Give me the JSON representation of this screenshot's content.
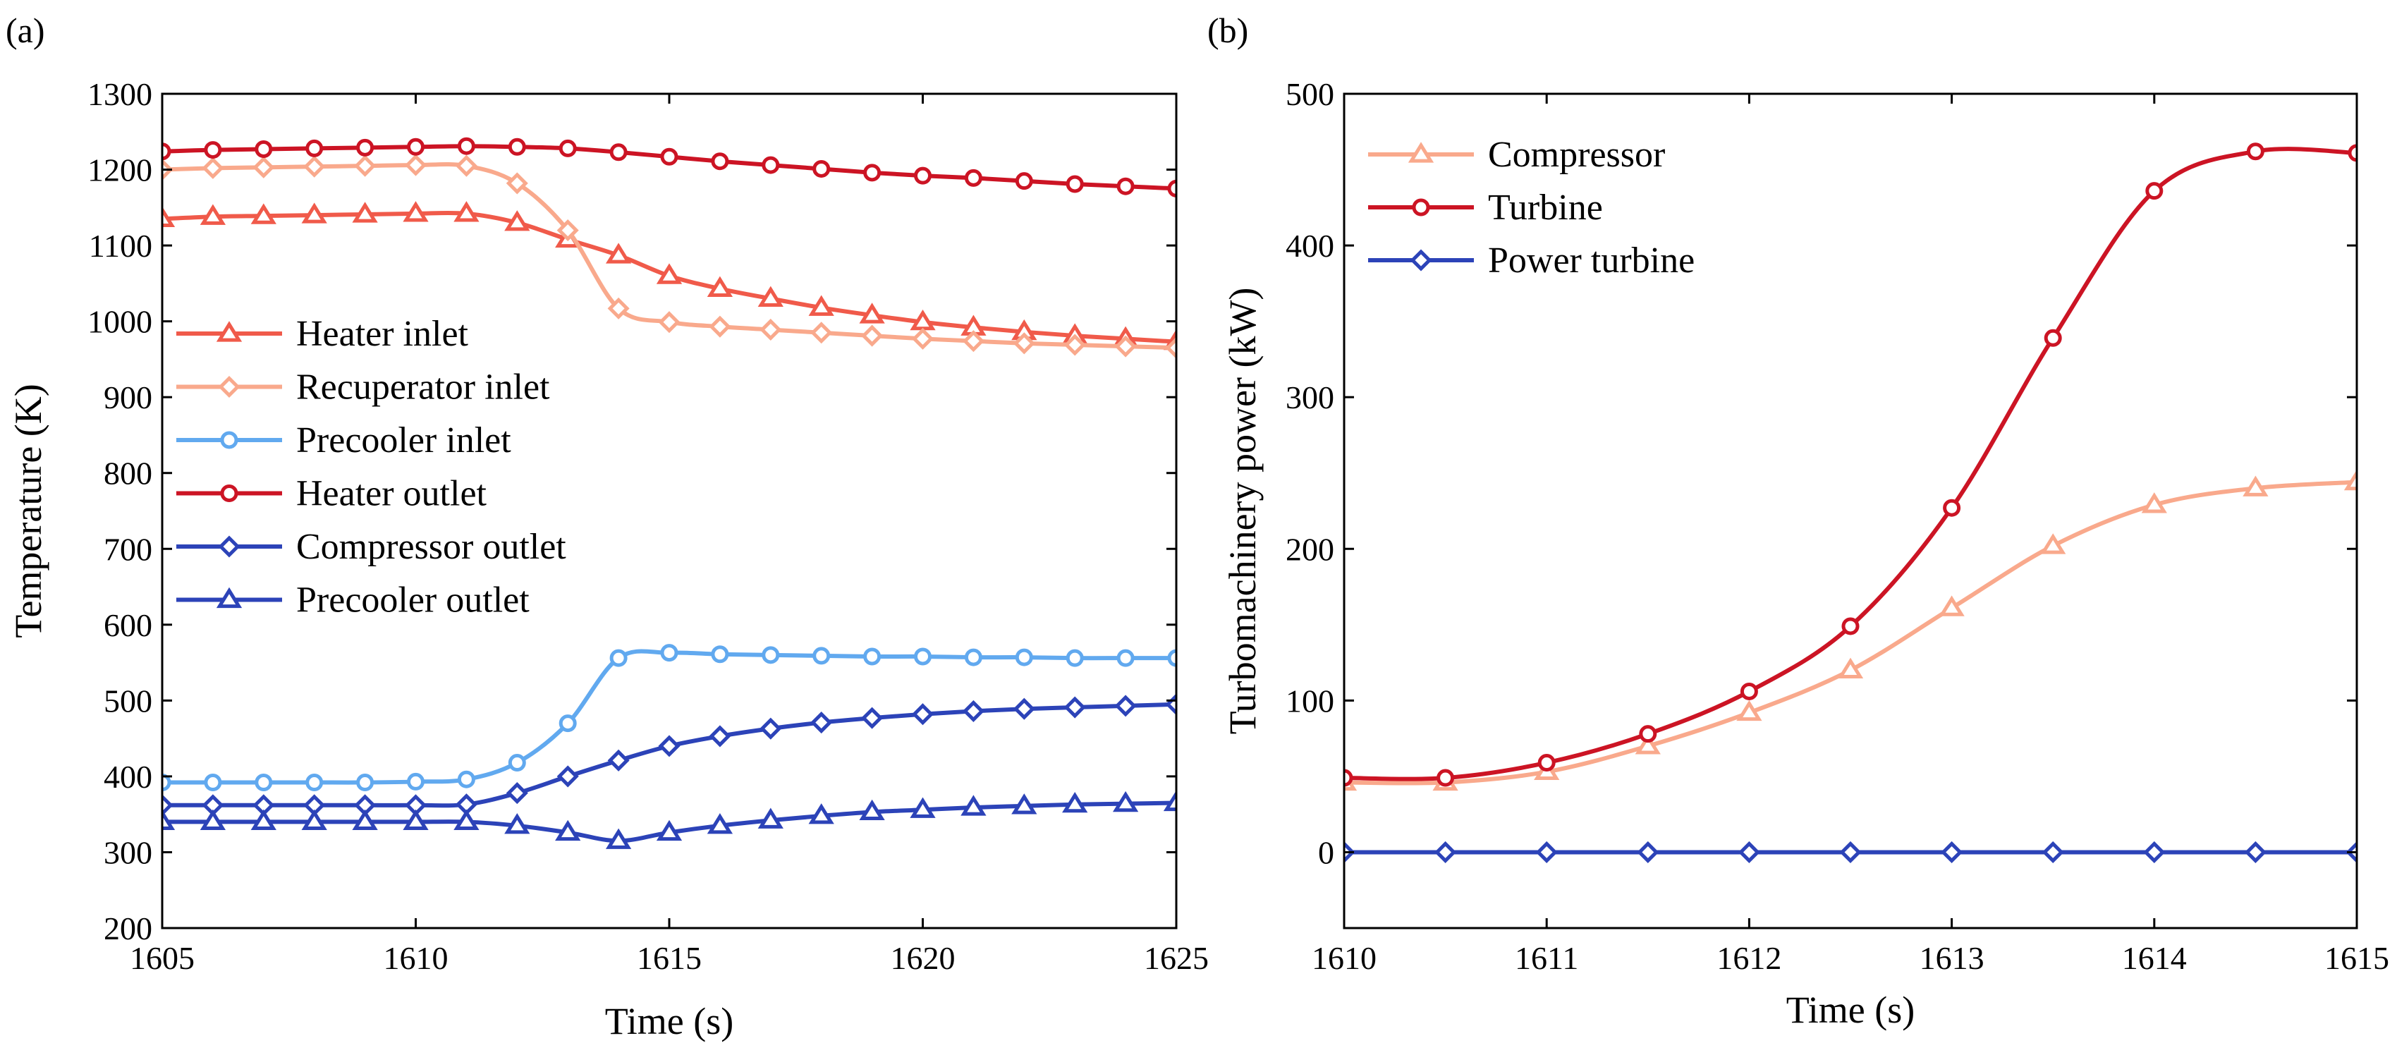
{
  "chart_data": [
    {
      "type": "line",
      "panel_label": "(a)",
      "title": "",
      "xlabel": "Time (s)",
      "ylabel": "Temperature (K)",
      "xlim": [
        1605,
        1625
      ],
      "ylim": [
        200,
        1300
      ],
      "xticks": [
        1605,
        1610,
        1615,
        1620,
        1625
      ],
      "yticks": [
        200,
        300,
        400,
        500,
        600,
        700,
        800,
        900,
        1000,
        1100,
        1200,
        1300
      ],
      "grid": false,
      "legend_position": "center-left",
      "x": [
        1605,
        1606,
        1607,
        1608,
        1609,
        1610,
        1611,
        1612,
        1613,
        1614,
        1615,
        1616,
        1617,
        1618,
        1619,
        1620,
        1621,
        1622,
        1623,
        1624,
        1625
      ],
      "series": [
        {
          "name": "Heater inlet",
          "color": "#f05a4a",
          "marker": "triangle",
          "values": [
            1135,
            1138,
            1139,
            1140,
            1141,
            1142,
            1142,
            1130,
            1108,
            1087,
            1060,
            1043,
            1030,
            1018,
            1008,
            999,
            992,
            986,
            981,
            977,
            973
          ]
        },
        {
          "name": "Recuperator inlet",
          "color": "#f9a98c",
          "marker": "diamond",
          "values": [
            1200,
            1202,
            1203,
            1204,
            1205,
            1206,
            1205,
            1182,
            1120,
            1017,
            999,
            993,
            989,
            985,
            981,
            977,
            974,
            971,
            969,
            967,
            965
          ]
        },
        {
          "name": "Precooler inlet",
          "color": "#61a9ef",
          "marker": "circle",
          "values": [
            392,
            392,
            392,
            392,
            392,
            393,
            396,
            418,
            470,
            556,
            563,
            561,
            560,
            559,
            558,
            558,
            557,
            557,
            556,
            556,
            556
          ]
        },
        {
          "name": "Heater outlet",
          "color": "#cc1424",
          "marker": "circle",
          "values": [
            1224,
            1226,
            1227,
            1228,
            1229,
            1230,
            1231,
            1230,
            1228,
            1223,
            1217,
            1211,
            1206,
            1201,
            1196,
            1192,
            1189,
            1185,
            1181,
            1178,
            1175
          ]
        },
        {
          "name": "Compressor outlet",
          "color": "#2c43b8",
          "marker": "diamond",
          "values": [
            362,
            362,
            362,
            362,
            362,
            362,
            363,
            378,
            400,
            421,
            440,
            453,
            463,
            471,
            477,
            482,
            486,
            489,
            491,
            493,
            495
          ]
        },
        {
          "name": "Precooler outlet",
          "color": "#2c43b8",
          "marker": "triangle",
          "values": [
            340,
            340,
            340,
            340,
            340,
            340,
            340,
            335,
            326,
            315,
            326,
            335,
            342,
            348,
            353,
            356,
            359,
            361,
            363,
            364,
            365
          ]
        }
      ]
    },
    {
      "type": "line",
      "panel_label": "(b)",
      "title": "",
      "xlabel": "Time (s)",
      "ylabel": "Turbomachinery power (kW)",
      "xlim": [
        1610,
        1615
      ],
      "ylim": [
        -50,
        500
      ],
      "xticks": [
        1610,
        1611,
        1612,
        1613,
        1614,
        1615
      ],
      "yticks": [
        0,
        100,
        200,
        300,
        400,
        500
      ],
      "grid": false,
      "legend_position": "top-left",
      "x": [
        1610,
        1610.5,
        1611,
        1611.5,
        1612,
        1612.5,
        1613,
        1613.5,
        1614,
        1614.5,
        1615
      ],
      "series": [
        {
          "name": "Compressor",
          "color": "#f9a98c",
          "marker": "triangle",
          "values": [
            46,
            46,
            53,
            70,
            92,
            120,
            161,
            202,
            229,
            240,
            244
          ]
        },
        {
          "name": "Turbine",
          "color": "#cc1424",
          "marker": "circle",
          "values": [
            49,
            49,
            59,
            78,
            106,
            149,
            227,
            339,
            436,
            462,
            461
          ]
        },
        {
          "name": "Power turbine",
          "color": "#2c43b8",
          "marker": "diamond",
          "values": [
            0,
            0,
            0,
            0,
            0,
            0,
            0,
            0,
            0,
            0,
            0
          ]
        }
      ]
    }
  ]
}
